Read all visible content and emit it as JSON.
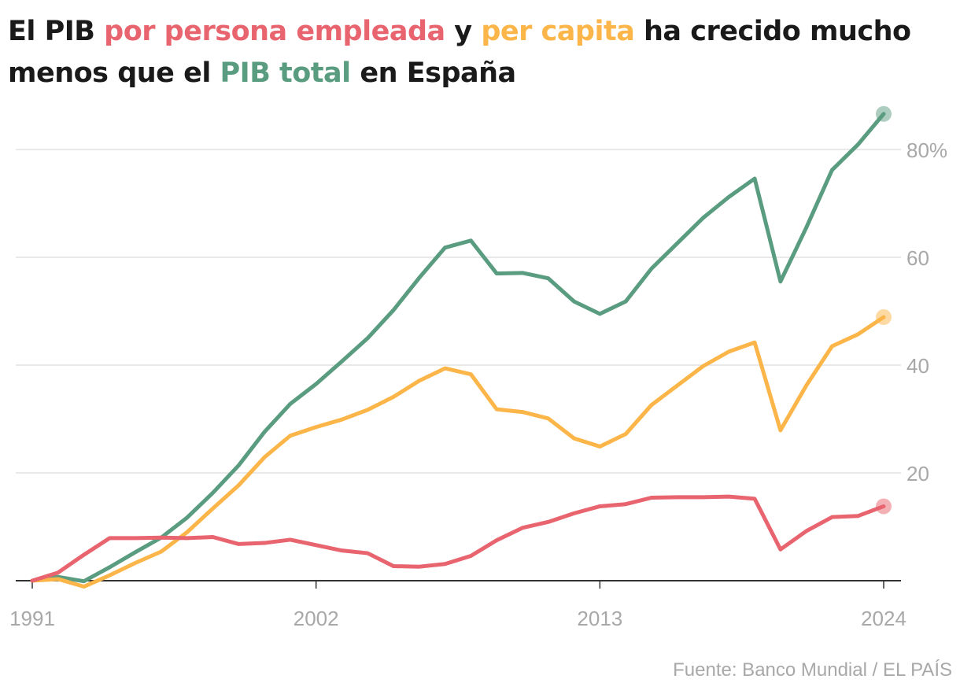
{
  "title": {
    "p1": "El PIB ",
    "p2": "por persona empleada",
    "p3": " y ",
    "p4": "per capita",
    "p5": " ha crecido mucho menos que el ",
    "p6": "PIB total",
    "p7": " en España"
  },
  "source": "Fuente: Banco Mundial / EL PAÍS",
  "chart_data": {
    "type": "line",
    "x": [
      1991,
      1992,
      1993,
      1994,
      1995,
      1996,
      1997,
      1998,
      1999,
      2000,
      2001,
      2002,
      2003,
      2004,
      2005,
      2006,
      2007,
      2008,
      2009,
      2010,
      2011,
      2012,
      2013,
      2014,
      2015,
      2016,
      2017,
      2018,
      2019,
      2020,
      2021,
      2022,
      2023,
      2024
    ],
    "x_ticks": [
      "1991",
      "2002",
      "2013",
      "2024"
    ],
    "y_ticks": [
      "20",
      "40",
      "60",
      "80%"
    ],
    "y_tick_values": [
      20,
      40,
      60,
      80
    ],
    "ylim": [
      -3,
      90
    ],
    "xlim": [
      1991,
      2024
    ],
    "grid": "horizontal",
    "y_axis_side": "right",
    "series": [
      {
        "name": "PIB total",
        "color": "#5a9c7f",
        "values": [
          0,
          0.7,
          -0.1,
          2.5,
          5.3,
          8.0,
          11.7,
          16.3,
          21.4,
          27.6,
          32.8,
          36.5,
          40.7,
          45.0,
          50.2,
          56.2,
          61.8,
          63.1,
          57.0,
          57.1,
          56.1,
          51.8,
          49.5,
          51.8,
          57.9,
          62.6,
          67.3,
          71.2,
          74.6,
          55.5,
          65.5,
          76.2,
          80.9,
          86.6
        ]
      },
      {
        "name": "per capita",
        "color": "#fbb548",
        "values": [
          0,
          0.3,
          -1.1,
          1.0,
          3.3,
          5.4,
          9.0,
          13.4,
          17.7,
          22.9,
          26.9,
          28.5,
          29.9,
          31.7,
          34.1,
          37.1,
          39.4,
          38.3,
          31.8,
          31.3,
          30.1,
          26.4,
          24.9,
          27.2,
          32.6,
          36.2,
          39.8,
          42.5,
          44.2,
          27.9,
          36.2,
          43.5,
          45.7,
          48.9
        ]
      },
      {
        "name": "por persona empleada",
        "color": "#e8646e",
        "values": [
          0,
          1.5,
          4.8,
          7.9,
          7.9,
          8.0,
          7.9,
          8.1,
          6.8,
          7.0,
          7.6,
          6.6,
          5.6,
          5.1,
          2.7,
          2.6,
          3.1,
          4.6,
          7.5,
          9.8,
          10.9,
          12.5,
          13.8,
          14.2,
          15.4,
          15.5,
          15.5,
          15.6,
          15.2,
          5.8,
          9.2,
          11.8,
          12.0,
          13.8
        ]
      }
    ]
  }
}
